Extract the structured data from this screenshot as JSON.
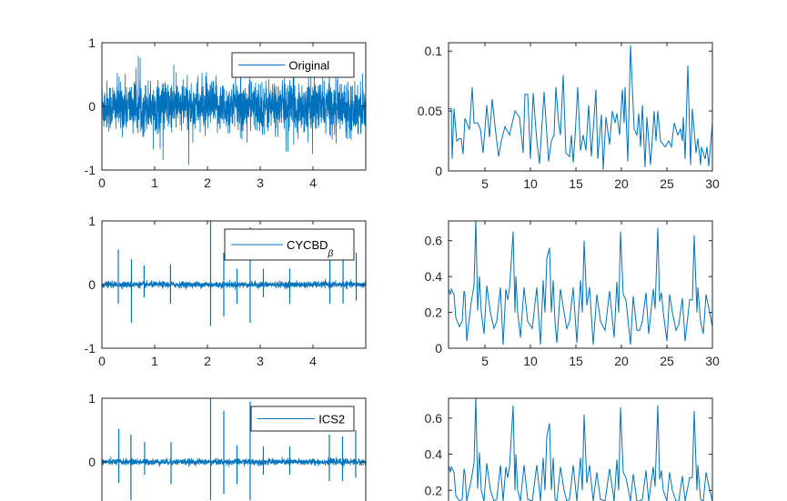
{
  "line_color": "#0072BD",
  "chart_data": [
    {
      "type": "line",
      "panel": "row1-left",
      "legend": {
        "label": "Original",
        "placement": "top-right"
      },
      "xlim": [
        0,
        5
      ],
      "ylim": [
        -1,
        1
      ],
      "xticks": [
        "0",
        "1",
        "2",
        "3",
        "4"
      ],
      "yticks": [
        "-1",
        "0",
        "1"
      ],
      "series": [
        {
          "name": "Original",
          "description_values": {
            "noise_range": [
              -0.9,
              1.0
            ]
          }
        }
      ]
    },
    {
      "type": "line",
      "panel": "row1-right",
      "xlim": [
        1,
        30
      ],
      "ylim": [
        0,
        0.107
      ],
      "xticks": [
        "5",
        "10",
        "15",
        "20",
        "25",
        "30"
      ],
      "yticks": [
        "0",
        "0.05",
        "0.1"
      ],
      "x": [
        1.0,
        1.3,
        1.4,
        1.6,
        1.9,
        2.2,
        2.4,
        2.6,
        2.8,
        3.1,
        3.3,
        3.6,
        3.8,
        4.2,
        4.5,
        4.8,
        5.2,
        5.5,
        5.8,
        6.1,
        6.5,
        6.8,
        7.2,
        7.7,
        8.3,
        8.8,
        9.2,
        9.4,
        9.7,
        10.0,
        10.3,
        10.7,
        11.0,
        11.5,
        12.0,
        12.3,
        12.6,
        12.8,
        13.1,
        13.3,
        13.6,
        13.9,
        14.3,
        14.5,
        14.7,
        14.9,
        15.2,
        15.5,
        15.8,
        16.1,
        16.4,
        16.7,
        17.2,
        17.4,
        17.8,
        18.0,
        18.3,
        18.7,
        19.0,
        19.3,
        19.5,
        19.8,
        20.1,
        20.3,
        20.4,
        20.7,
        21.0,
        21.4,
        21.7,
        21.9,
        22.1,
        22.3,
        22.6,
        22.8,
        23.2,
        23.6,
        23.8,
        24.0,
        24.3,
        24.8,
        25.2,
        25.5,
        25.8,
        26.2,
        26.5,
        26.7,
        26.8,
        27.0,
        27.3,
        27.6,
        27.8,
        28.2,
        28.4,
        28.7,
        28.8,
        29.2,
        29.4,
        29.6,
        30.0
      ],
      "y": [
        0.052,
        0.052,
        0.01,
        0.052,
        0.025,
        0.027,
        0.027,
        0.014,
        0.044,
        0.038,
        0.035,
        0.07,
        0.04,
        0.04,
        0.035,
        0.015,
        0.055,
        0.028,
        0.06,
        0.038,
        0.012,
        0.025,
        0.037,
        0.03,
        0.05,
        0.045,
        0.015,
        0.064,
        0.064,
        0.01,
        0.065,
        0.025,
        0.006,
        0.066,
        0.008,
        0.025,
        0.03,
        0.07,
        0.04,
        0.03,
        0.08,
        0.015,
        0.012,
        0.03,
        0.007,
        0.028,
        0.07,
        0.017,
        0.03,
        0.017,
        0.055,
        0.012,
        0.068,
        0.01,
        0.047,
        0.001,
        0.045,
        0.022,
        0.05,
        0.04,
        0.048,
        0.03,
        0.068,
        0.04,
        0.07,
        0.008,
        0.105,
        0.035,
        0.03,
        0.048,
        0.02,
        0.055,
        0.003,
        0.045,
        0.005,
        0.05,
        0.025,
        0.05,
        0.025,
        0.02,
        0.025,
        0.02,
        0.04,
        0.03,
        0.035,
        0.025,
        0.045,
        0.01,
        0.088,
        0.005,
        0.052,
        0.015,
        0.027,
        0.005,
        0.02,
        0.01,
        0.02,
        0.004,
        0.04
      ]
    },
    {
      "type": "line",
      "panel": "row2-left",
      "legend": {
        "label": "CYCBD",
        "subscript": "β",
        "placement": "top-right"
      },
      "xlim": [
        0,
        5
      ],
      "ylim": [
        -1,
        1
      ],
      "xticks": [
        "0",
        "1",
        "2",
        "3",
        "4"
      ],
      "yticks": [
        "-1",
        "0",
        "1"
      ],
      "impulses": [
        {
          "t": 0.31,
          "up": 0.55,
          "down": -0.3
        },
        {
          "t": 0.56,
          "up": 0.4,
          "down": -0.6
        },
        {
          "t": 0.8,
          "up": 0.3,
          "down": -0.2
        },
        {
          "t": 1.3,
          "up": 0.32,
          "down": -0.3
        },
        {
          "t": 2.06,
          "up": 1.0,
          "down": -0.65
        },
        {
          "t": 2.31,
          "up": 0.5,
          "down": -0.5
        },
        {
          "t": 2.56,
          "up": 0.25,
          "down": -0.3
        },
        {
          "t": 2.81,
          "up": 0.9,
          "down": -0.6
        },
        {
          "t": 3.06,
          "up": 0.25,
          "down": -0.2
        },
        {
          "t": 3.56,
          "up": 0.25,
          "down": -0.3
        },
        {
          "t": 4.32,
          "up": 0.4,
          "down": -0.3
        },
        {
          "t": 4.57,
          "up": 0.4,
          "down": -0.3
        },
        {
          "t": 4.82,
          "up": 0.5,
          "down": -0.25
        }
      ]
    },
    {
      "type": "line",
      "panel": "row2-right",
      "xlim": [
        1,
        30
      ],
      "ylim": [
        0,
        0.71
      ],
      "xticks": [
        "5",
        "10",
        "15",
        "20",
        "25",
        "30"
      ],
      "yticks": [
        "0",
        "0.2",
        "0.4",
        "0.6"
      ],
      "x": [
        1.0,
        1.2,
        1.3,
        1.6,
        1.8,
        2.2,
        2.5,
        2.7,
        2.8,
        3.0,
        3.5,
        3.8,
        4.0,
        4.2,
        4.4,
        4.6,
        4.9,
        5.2,
        5.6,
        6.0,
        6.3,
        6.7,
        7.0,
        7.3,
        7.5,
        7.7,
        8.1,
        8.3,
        8.4,
        8.6,
        8.9,
        9.3,
        9.7,
        10.2,
        10.7,
        11.1,
        11.4,
        11.6,
        11.8,
        12.1,
        12.3,
        12.5,
        12.7,
        12.9,
        13.3,
        13.7,
        14.0,
        14.3,
        14.7,
        15.1,
        15.5,
        15.7,
        15.9,
        16.2,
        16.5,
        16.9,
        17.3,
        17.7,
        18.2,
        18.7,
        19.2,
        19.5,
        19.7,
        19.9,
        20.2,
        20.5,
        21.0,
        21.3,
        21.7,
        22.0,
        22.3,
        22.7,
        23.0,
        23.5,
        23.7,
        24.0,
        24.2,
        24.4,
        24.6,
        25.0,
        25.3,
        25.6,
        26.0,
        26.3,
        26.7,
        27.0,
        27.5,
        27.8,
        28.0,
        28.3,
        28.4,
        28.7,
        29.0,
        29.3,
        29.7,
        30.0
      ],
      "y": [
        0.33,
        0.3,
        0.33,
        0.3,
        0.17,
        0.12,
        0.15,
        0.32,
        0.3,
        0.04,
        0.26,
        0.35,
        0.72,
        0.21,
        0.4,
        0.2,
        0.08,
        0.35,
        0.2,
        0.11,
        0.15,
        0.34,
        0.02,
        0.33,
        0.27,
        0.33,
        0.65,
        0.2,
        0.4,
        0.2,
        0.06,
        0.34,
        0.15,
        0.11,
        0.34,
        0.02,
        0.38,
        0.2,
        0.5,
        0.56,
        0.2,
        0.38,
        0.15,
        0.03,
        0.33,
        0.2,
        0.11,
        0.15,
        0.34,
        0.03,
        0.38,
        0.2,
        0.6,
        0.24,
        0.34,
        0.02,
        0.3,
        0.15,
        0.1,
        0.32,
        0.06,
        0.37,
        0.2,
        0.65,
        0.3,
        0.27,
        0.02,
        0.29,
        0.1,
        0.1,
        0.15,
        0.31,
        0.08,
        0.33,
        0.22,
        0.67,
        0.26,
        0.31,
        0.2,
        0.04,
        0.3,
        0.2,
        0.1,
        0.13,
        0.28,
        0.04,
        0.27,
        0.27,
        0.63,
        0.2,
        0.34,
        0.15,
        0.08,
        0.3,
        0.2,
        0.12
      ]
    },
    {
      "type": "line",
      "panel": "row3-left",
      "legend": {
        "label": "ICS2",
        "placement": "top-right"
      },
      "xlim": [
        0,
        5
      ],
      "ylim": [
        -1,
        1
      ],
      "yticks": [
        "0",
        "1"
      ],
      "impulses": [
        {
          "t": 0.32,
          "up": 0.52,
          "down": -0.33
        },
        {
          "t": 0.55,
          "up": 0.43,
          "down": -0.6
        },
        {
          "t": 0.81,
          "up": 0.31,
          "down": -0.2
        },
        {
          "t": 1.31,
          "up": 0.31,
          "down": -0.35
        },
        {
          "t": 2.06,
          "up": 1.0,
          "down": -0.6
        },
        {
          "t": 2.31,
          "up": 0.8,
          "down": -0.5
        },
        {
          "t": 2.56,
          "up": 0.26,
          "down": -0.35
        },
        {
          "t": 2.81,
          "up": 0.95,
          "down": -0.6
        },
        {
          "t": 3.06,
          "up": 0.24,
          "down": -0.2
        },
        {
          "t": 3.56,
          "up": 0.24,
          "down": -0.2
        },
        {
          "t": 4.31,
          "up": 0.43,
          "down": -0.3
        },
        {
          "t": 4.56,
          "up": 0.4,
          "down": -0.3
        },
        {
          "t": 4.81,
          "up": 0.5,
          "down": -0.25
        }
      ]
    },
    {
      "type": "line",
      "panel": "row3-right",
      "xlim": [
        1,
        30
      ],
      "ylim": [
        0,
        0.71
      ],
      "yticks": [
        "0.2",
        "0.4",
        "0.6"
      ],
      "x": [
        1.0,
        1.2,
        1.3,
        1.6,
        1.8,
        2.2,
        2.5,
        2.7,
        2.8,
        3.0,
        3.5,
        3.8,
        4.0,
        4.2,
        4.4,
        4.6,
        4.9,
        5.2,
        5.6,
        6.0,
        6.3,
        6.7,
        7.0,
        7.3,
        7.5,
        7.7,
        8.1,
        8.3,
        8.4,
        8.6,
        8.9,
        9.3,
        9.7,
        10.2,
        10.7,
        11.1,
        11.4,
        11.6,
        11.8,
        12.1,
        12.3,
        12.5,
        12.7,
        12.9,
        13.3,
        13.7,
        14.0,
        14.3,
        14.7,
        15.1,
        15.5,
        15.7,
        15.9,
        16.2,
        16.5,
        16.9,
        17.3,
        17.7,
        18.2,
        18.7,
        19.2,
        19.5,
        19.7,
        19.9,
        20.2,
        20.5,
        21.0,
        21.3,
        21.7,
        22.0,
        22.3,
        22.7,
        23.0,
        23.5,
        23.7,
        24.0,
        24.2,
        24.4,
        24.6,
        25.0,
        25.3,
        25.6,
        26.0,
        26.3,
        26.7,
        27.0,
        27.5,
        27.8,
        28.0,
        28.3,
        28.4,
        28.7,
        29.0,
        29.3,
        29.7,
        30.0
      ],
      "y": [
        0.34,
        0.3,
        0.33,
        0.3,
        0.17,
        0.12,
        0.15,
        0.32,
        0.3,
        0.04,
        0.26,
        0.35,
        0.72,
        0.21,
        0.41,
        0.2,
        0.08,
        0.35,
        0.2,
        0.11,
        0.15,
        0.34,
        0.02,
        0.33,
        0.27,
        0.33,
        0.67,
        0.2,
        0.4,
        0.2,
        0.06,
        0.34,
        0.15,
        0.11,
        0.34,
        0.02,
        0.38,
        0.2,
        0.5,
        0.57,
        0.2,
        0.38,
        0.15,
        0.03,
        0.33,
        0.2,
        0.11,
        0.15,
        0.34,
        0.03,
        0.38,
        0.2,
        0.62,
        0.24,
        0.34,
        0.02,
        0.3,
        0.15,
        0.1,
        0.32,
        0.06,
        0.37,
        0.2,
        0.66,
        0.3,
        0.27,
        0.02,
        0.29,
        0.1,
        0.1,
        0.15,
        0.31,
        0.08,
        0.33,
        0.22,
        0.67,
        0.26,
        0.31,
        0.2,
        0.04,
        0.3,
        0.2,
        0.1,
        0.13,
        0.28,
        0.04,
        0.27,
        0.27,
        0.64,
        0.2,
        0.34,
        0.15,
        0.08,
        0.3,
        0.2,
        0.12
      ]
    }
  ]
}
